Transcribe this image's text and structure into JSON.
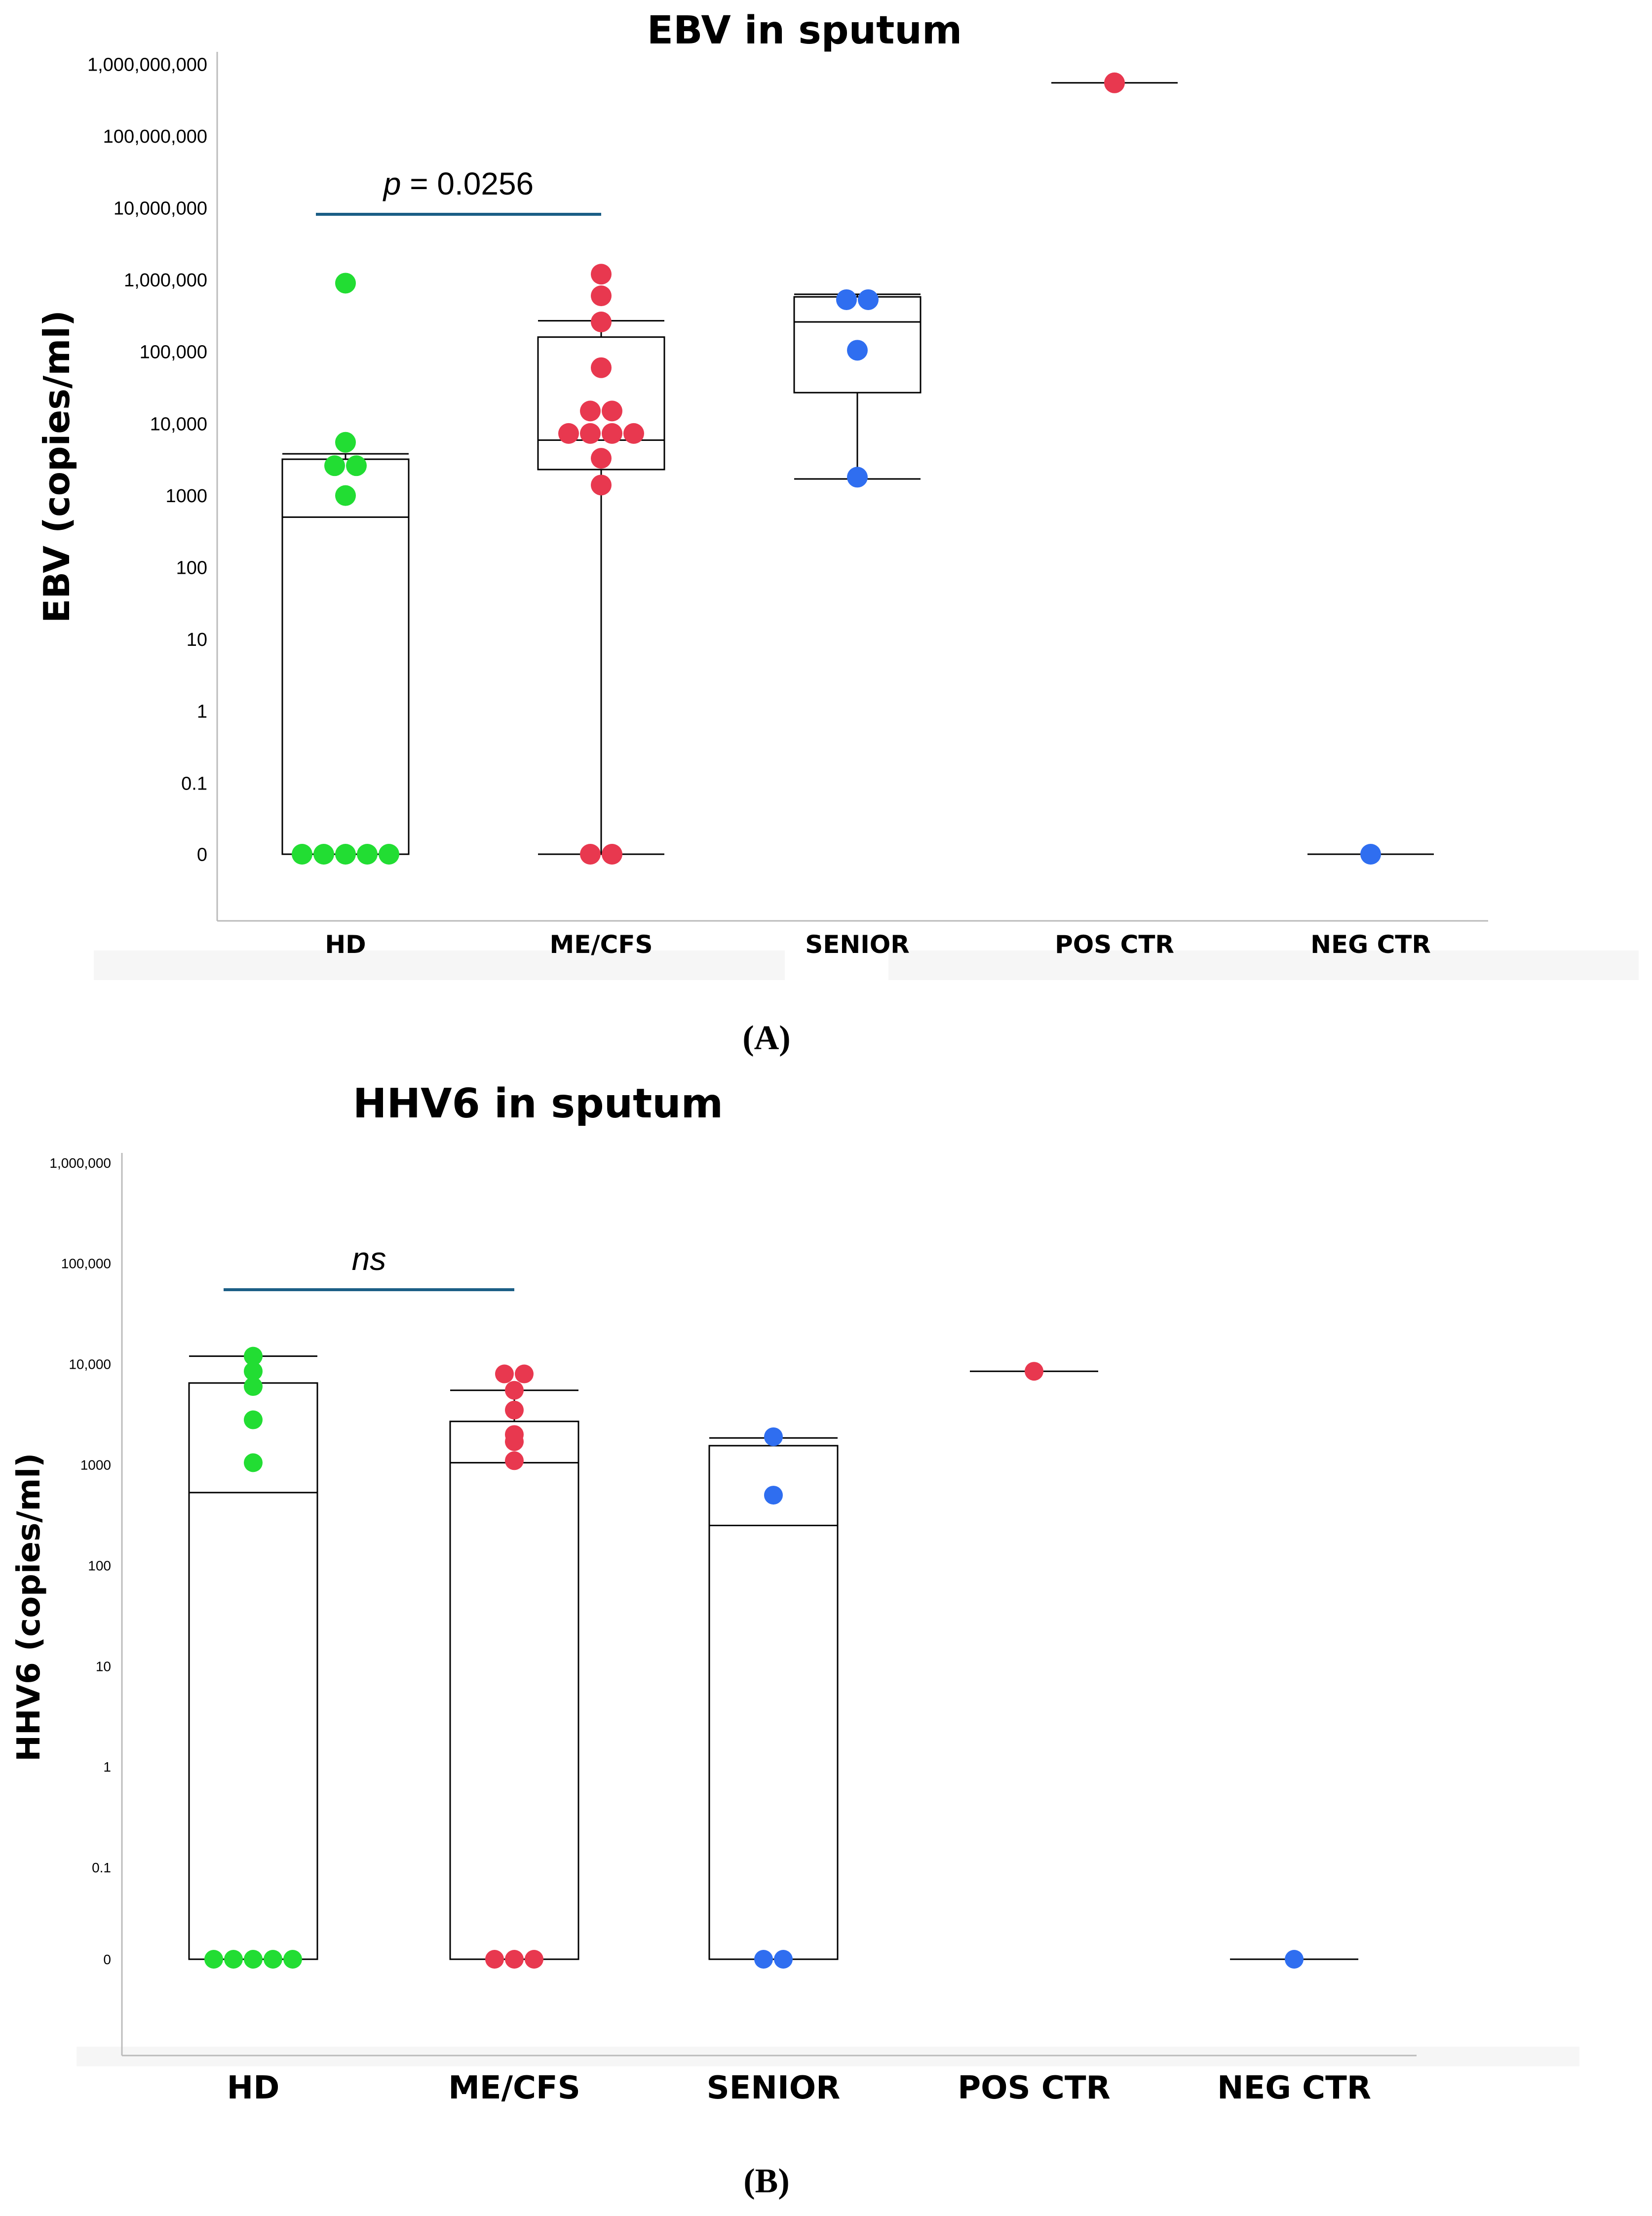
{
  "chart_data": [
    {
      "type": "box",
      "title": "EBV in sputum",
      "panel_label": "(A)",
      "ylabel": "EBV (copies/ml)",
      "xlabel": "",
      "yscale": "log",
      "ticks": [
        {
          "value": 0,
          "label": "0"
        },
        {
          "value": 0.1,
          "label": "0.1"
        },
        {
          "value": 1,
          "label": "1"
        },
        {
          "value": 10,
          "label": "10"
        },
        {
          "value": 100,
          "label": "100"
        },
        {
          "value": 1000,
          "label": "1000"
        },
        {
          "value": 10000,
          "label": "10,000"
        },
        {
          "value": 100000,
          "label": "100,000"
        },
        {
          "value": 1000000,
          "label": "1,000,000"
        },
        {
          "value": 10000000,
          "label": "10,000,000"
        },
        {
          "value": 100000000,
          "label": "100,000,000"
        },
        {
          "value": 1000000000,
          "label": "1,000,000,000"
        }
      ],
      "categories": [
        "HD",
        "ME/CFS",
        "SENIOR",
        "POS CTR",
        "NEG CTR"
      ],
      "groups": [
        {
          "name": "HD",
          "color": "#22dd33",
          "box": {
            "q1": 0,
            "median": 500,
            "q3": 3200,
            "whisker_low": 0,
            "whisker_high": 3800
          },
          "points": [
            900000,
            5500,
            2600,
            2600,
            1000,
            0,
            0,
            0,
            0,
            0
          ]
        },
        {
          "name": "ME/CFS",
          "color": "#e8384f",
          "box": {
            "q1": 2300,
            "median": 5900,
            "q3": 160000,
            "whisker_low": 0,
            "whisker_high": 270000
          },
          "points": [
            1200000,
            600000,
            260000,
            60000,
            15000,
            15000,
            7300,
            7300,
            7300,
            7300,
            3300,
            1400,
            0,
            0
          ]
        },
        {
          "name": "SENIOR",
          "color": "#2f6ef0",
          "box": {
            "q1": 27000,
            "median": 260000,
            "q3": 580000,
            "whisker_low": 1700,
            "whisker_high": 630000
          },
          "points": [
            530000,
            530000,
            105000,
            1800
          ]
        },
        {
          "name": "POS CTR",
          "color": "#e8384f",
          "box": {
            "median": 550000000
          },
          "points": [
            550000000
          ]
        },
        {
          "name": "NEG CTR",
          "color": "#2f6ef0",
          "box": {
            "median": 0
          },
          "points": [
            0
          ]
        }
      ],
      "annotation": {
        "italic": "p",
        "text": " = 0.0256",
        "from": "HD",
        "to": "ME/CFS",
        "color": "#1b5e86"
      }
    },
    {
      "type": "box",
      "title": "HHV6 in sputum",
      "panel_label": "(B)",
      "ylabel": "HHV6 (copies/ml)",
      "xlabel": "",
      "yscale": "log",
      "ticks": [
        {
          "value": 0,
          "label": "0"
        },
        {
          "value": 0.1,
          "label": "0.1"
        },
        {
          "value": 1,
          "label": "1"
        },
        {
          "value": 10,
          "label": "10"
        },
        {
          "value": 100,
          "label": "100"
        },
        {
          "value": 1000,
          "label": "1000"
        },
        {
          "value": 10000,
          "label": "10,000"
        },
        {
          "value": 100000,
          "label": "100,000"
        },
        {
          "value": 1000000,
          "label": "1,000,000"
        }
      ],
      "categories": [
        "HD",
        "ME/CFS",
        "SENIOR",
        "POS CTR",
        "NEG CTR"
      ],
      "groups": [
        {
          "name": "HD",
          "color": "#22dd33",
          "box": {
            "q1": 0,
            "median": 530,
            "q3": 6500,
            "whisker_low": 0,
            "whisker_high": 12000
          },
          "points": [
            12000,
            8500,
            6000,
            2800,
            1050,
            0,
            0,
            0,
            0,
            0
          ]
        },
        {
          "name": "ME/CFS",
          "color": "#e8384f",
          "box": {
            "q1": 0,
            "median": 1050,
            "q3": 2700,
            "whisker_low": 0,
            "whisker_high": 5500
          },
          "points": [
            8000,
            8000,
            5500,
            3500,
            2000,
            1700,
            1100,
            0,
            0,
            0
          ]
        },
        {
          "name": "SENIOR",
          "color": "#2f6ef0",
          "box": {
            "q1": 0,
            "median": 250,
            "q3": 1550,
            "whisker_low": 0,
            "whisker_high": 1850
          },
          "points": [
            1900,
            500,
            0,
            0
          ]
        },
        {
          "name": "POS CTR",
          "color": "#e8384f",
          "box": {
            "median": 8500
          },
          "points": [
            8500
          ]
        },
        {
          "name": "NEG CTR",
          "color": "#2f6ef0",
          "box": {
            "median": 0
          },
          "points": [
            0
          ]
        }
      ],
      "annotation": {
        "italic": "ns",
        "text": "",
        "from": "HD",
        "to": "ME/CFS",
        "color": "#1b5e86"
      }
    }
  ]
}
